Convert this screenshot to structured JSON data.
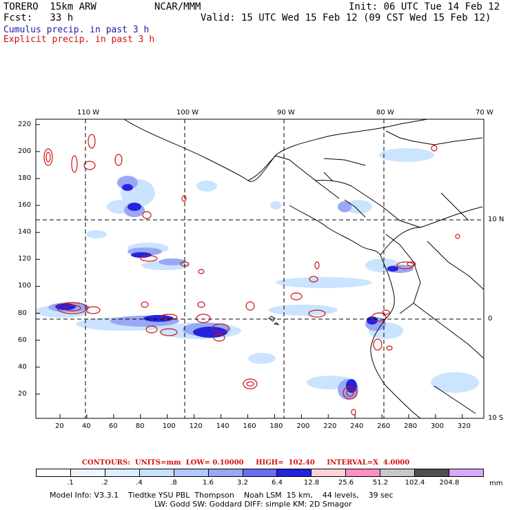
{
  "header": {
    "model": "TORERO  15km ARW",
    "org": "NCAR/MMM",
    "init": "Init: 06 UTC Tue 14 Feb 12",
    "fcst": "Fcst:   33 h",
    "valid": "Valid: 15 UTC Wed 15 Feb 12 (09 CST Wed 15 Feb 12)",
    "cumulus": "Cumulus precip. in past 3 h",
    "explicit": "Explicit precip. in past 3 h"
  },
  "axes": {
    "x_ticks": [
      "20",
      "40",
      "60",
      "80",
      "100",
      "120",
      "140",
      "160",
      "180",
      "200",
      "220",
      "240",
      "260",
      "280",
      "300",
      "320"
    ],
    "y_ticks": [
      "220",
      "200",
      "180",
      "160",
      "140",
      "120",
      "100",
      "80",
      "60",
      "40",
      "20"
    ],
    "lon_labels": [
      "110 W",
      "100 W",
      "90 W",
      "80 W",
      "70 W"
    ],
    "lat_labels": [
      "10 N",
      "0",
      "10 S"
    ]
  },
  "contours": {
    "units": "CONTOURS:  UNITS=mm  LOW= 0.10000",
    "high": "HIGH=  102.40",
    "interval": "INTERVAL=X  4.0000"
  },
  "legend": {
    "labels": [
      ".1",
      ".2",
      ".4",
      ".8",
      "1.6",
      "3.2",
      "6.4",
      "12.8",
      "25.6",
      "51.2",
      "102.4",
      "204.8"
    ],
    "unit": "mm",
    "colors": [
      "#ffffff",
      "#eef6ff",
      "#dbeeff",
      "#c5e2ff",
      "#b0c8ff",
      "#98a8f5",
      "#6a6ef0",
      "#2323e0",
      "#ffd0d8",
      "#ff8fc4",
      "#c8c8c8",
      "#505050",
      "#d8a8f8"
    ]
  },
  "footer": {
    "line1": "Model Info: V3.3.1    Tiedtke YSU PBL  Thompson    Noah LSM  15 km,    44 levels,    39 sec",
    "line2": "LW: Godd SW: Goddard DIFF: simple KM: 2D Smagor"
  },
  "colors": {
    "cumulus": "#2323e0",
    "explicit": "#d01010",
    "light_precip": "#c5e2ff"
  }
}
